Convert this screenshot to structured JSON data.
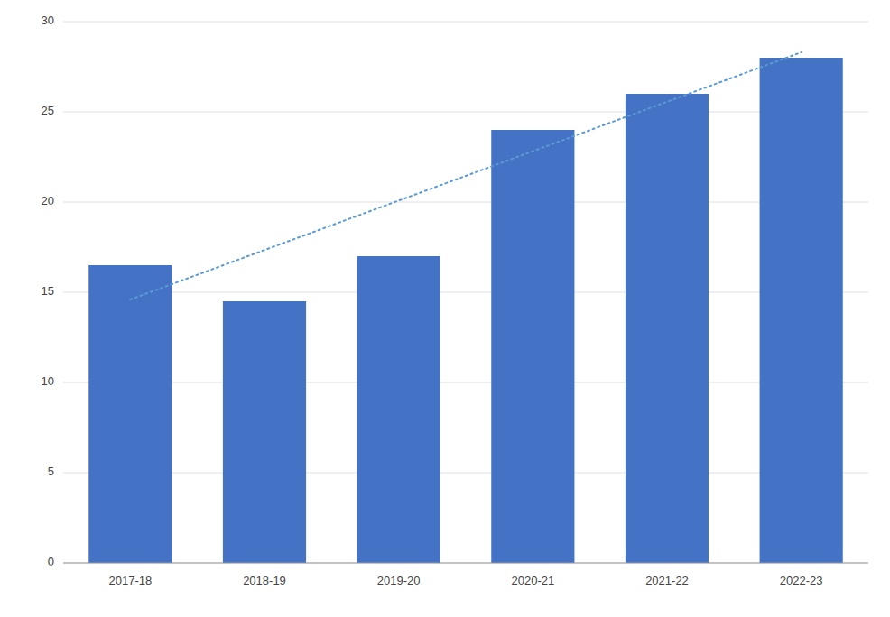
{
  "chart_data": {
    "type": "bar",
    "categories": [
      "2017-18",
      "2018-19",
      "2019-20",
      "2020-21",
      "2021-22",
      "2022-23"
    ],
    "values": [
      16.5,
      14.5,
      17.0,
      24.0,
      26.0,
      28.0
    ],
    "color": "#4472C4",
    "trend": {
      "values": [
        14.6,
        28.3
      ],
      "color": "#5B9BD5",
      "line_style": "dotted"
    },
    "ylim": [
      0,
      30
    ],
    "yticks": [
      0,
      5,
      10,
      15,
      20,
      25,
      30
    ],
    "grid": true
  }
}
